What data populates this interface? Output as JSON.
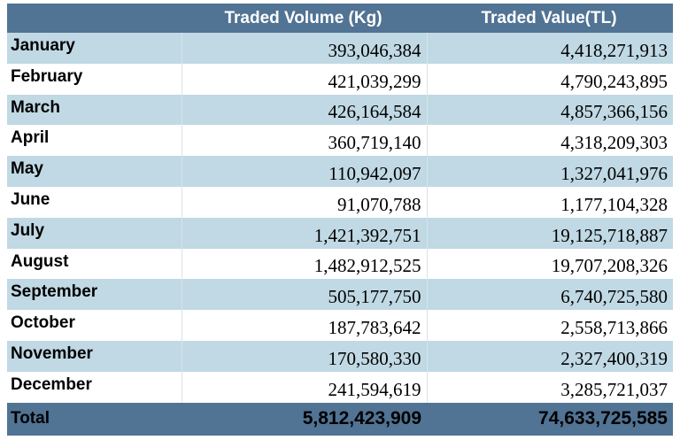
{
  "header": {
    "col0": "",
    "col1": "Traded Volume (Kg)",
    "col2": "Traded Value(TL)"
  },
  "rows": [
    {
      "month": "January",
      "volume": "393,046,384",
      "value": "4,418,271,913"
    },
    {
      "month": "February",
      "volume": "421,039,299",
      "value": "4,790,243,895"
    },
    {
      "month": "March",
      "volume": "426,164,584",
      "value": "4,857,366,156"
    },
    {
      "month": "April",
      "volume": "360,719,140",
      "value": "4,318,209,303"
    },
    {
      "month": "May",
      "volume": "110,942,097",
      "value": "1,327,041,976"
    },
    {
      "month": "June",
      "volume": "91,070,788",
      "value": "1,177,104,328"
    },
    {
      "month": "July",
      "volume": "1,421,392,751",
      "value": "19,125,718,887"
    },
    {
      "month": "August",
      "volume": "1,482,912,525",
      "value": "19,707,208,326"
    },
    {
      "month": "September",
      "volume": "505,177,750",
      "value": "6,740,725,580"
    },
    {
      "month": "October",
      "volume": "187,783,642",
      "value": "2,558,713,866"
    },
    {
      "month": "November",
      "volume": "170,580,330",
      "value": "2,327,400,319"
    },
    {
      "month": "December",
      "volume": "241,594,619",
      "value": "3,285,721,037"
    }
  ],
  "total": {
    "label": "Total",
    "volume": "5,812,423,909",
    "value": "74,633,725,585"
  },
  "colors": {
    "header_bg": "#517394",
    "band": "#c0d9e4"
  }
}
